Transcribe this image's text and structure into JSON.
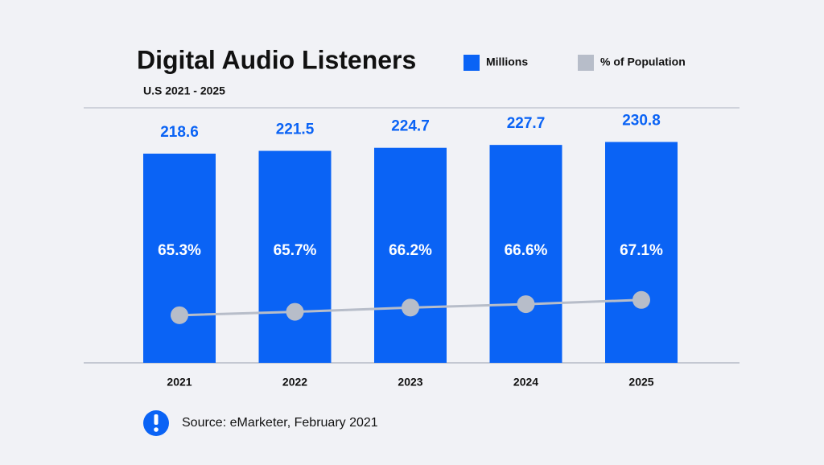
{
  "chart_data": {
    "type": "bar",
    "title": "Digital Audio Listeners",
    "subtitle": "U.S 2021 - 2025",
    "source": "Source: eMarketer, February 2021",
    "categories": [
      "2021",
      "2022",
      "2023",
      "2024",
      "2025"
    ],
    "series": [
      {
        "name": "Millions",
        "type": "bar",
        "color": "#0a63f5",
        "values": [
          218.6,
          221.5,
          224.7,
          227.7,
          230.8
        ]
      },
      {
        "name": "% of Population",
        "type": "line",
        "axis": "y2",
        "color": "#b7bdc9",
        "values": [
          65.3,
          65.7,
          66.2,
          66.6,
          67.1
        ],
        "value_labels": [
          "65.3%",
          "65.7%",
          "66.2%",
          "66.6%",
          "67.1%"
        ]
      }
    ],
    "ylim": [
      0,
      266.5
    ],
    "y2lim": [
      59.7,
      89.7
    ]
  }
}
